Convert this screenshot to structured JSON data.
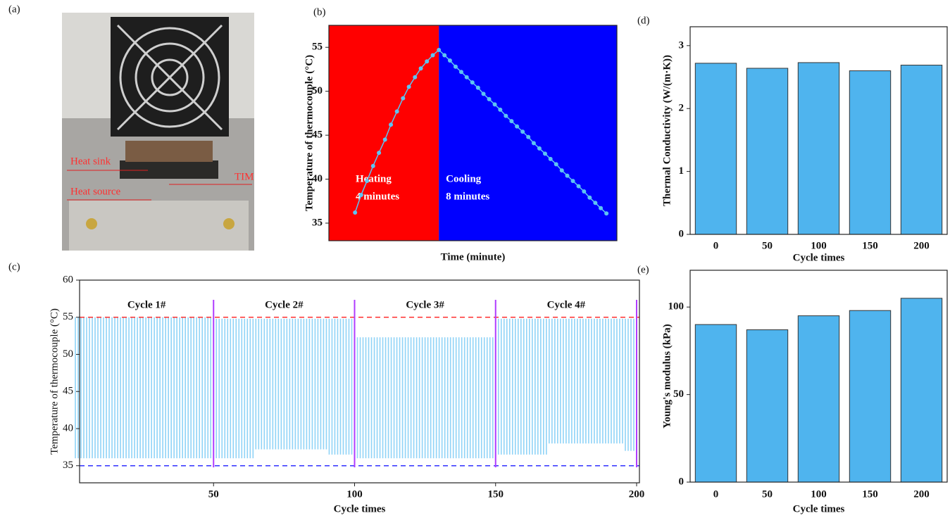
{
  "image_panel": {
    "panel_label": "(a)",
    "annotations": [
      "Heat sink",
      "TIM",
      "Heat source"
    ]
  },
  "chart_data": [
    {
      "type": "line",
      "panel_label": "(b)",
      "x_label": "Time (minute)",
      "y_label": "Temperature of thermocouple (°C)",
      "xlim": [
        -1.25,
        12.5
      ],
      "ylim": [
        33,
        57.5
      ],
      "yticks": [
        35,
        40,
        45,
        50,
        55
      ],
      "regions": [
        {
          "from": -1.25,
          "to": 4,
          "color": "#ff0000",
          "label": [
            "Heating",
            "4 minutes"
          ]
        },
        {
          "from": 4,
          "to": 12.5,
          "color": "#0000ff",
          "label": [
            "Cooling",
            "8 minutes"
          ]
        }
      ],
      "series": [
        {
          "color": "#5ec4f2",
          "x": [
            0,
            0.29,
            0.57,
            0.86,
            1.14,
            1.43,
            1.71,
            2.0,
            2.29,
            2.57,
            2.86,
            3.14,
            3.43,
            3.71,
            4.0,
            4.27,
            4.53,
            4.8,
            5.07,
            5.33,
            5.6,
            5.87,
            6.13,
            6.4,
            6.67,
            6.93,
            7.2,
            7.47,
            7.73,
            8.0,
            8.27,
            8.53,
            8.8,
            9.07,
            9.33,
            9.6,
            9.87,
            10.13,
            10.4,
            10.67,
            10.93,
            11.2,
            11.47,
            11.73,
            12.0
          ],
          "values": [
            36.2,
            38.2,
            39.8,
            41.5,
            43.0,
            44.5,
            46.2,
            47.7,
            49.2,
            50.5,
            51.6,
            52.6,
            53.4,
            54.1,
            54.7,
            54.1,
            53.5,
            52.8,
            52.2,
            51.6,
            51.0,
            50.4,
            49.7,
            49.1,
            48.5,
            47.9,
            47.2,
            46.6,
            46.0,
            45.4,
            44.8,
            44.1,
            43.5,
            42.9,
            42.3,
            41.7,
            41.0,
            40.4,
            39.8,
            39.2,
            38.6,
            37.9,
            37.3,
            36.7,
            36.1
          ]
        }
      ]
    },
    {
      "type": "range",
      "panel_label": "(c)",
      "x_label": "Cycle times",
      "y_label": "Temperature of thermocouple (°C)",
      "xlim": [
        2.5,
        201
      ],
      "ylim": [
        32.7,
        60
      ],
      "xticks": [
        50,
        100,
        150,
        200
      ],
      "yticks": [
        35,
        40,
        45,
        50,
        55,
        60
      ],
      "reference_lines": [
        {
          "value": 55,
          "color": "#ff3030"
        },
        {
          "value": 35,
          "color": "#3030ff"
        }
      ],
      "separators": [
        50,
        100,
        150,
        200
      ],
      "separator_color": "#b03cff",
      "annotations": [
        "Cycle 1#",
        "Cycle 2#",
        "Cycle 3#",
        "Cycle 4#"
      ],
      "x": [
        1,
        2,
        3,
        4,
        5,
        6,
        7,
        8,
        9,
        10,
        11,
        12,
        13,
        14,
        15,
        16,
        17,
        18,
        19,
        20,
        21,
        22,
        23,
        24,
        25,
        26,
        27,
        28,
        29,
        30,
        31,
        32,
        33,
        34,
        35,
        36,
        37,
        38,
        39,
        40,
        41,
        42,
        43,
        44,
        45,
        46,
        47,
        48,
        49,
        50,
        51,
        52,
        53,
        54,
        55,
        56,
        57,
        58,
        59,
        60,
        61,
        62,
        63,
        64,
        65,
        66,
        67,
        68,
        69,
        70,
        71,
        72,
        73,
        74,
        75,
        76,
        77,
        78,
        79,
        80,
        81,
        82,
        83,
        84,
        85,
        86,
        87,
        88,
        89,
        90,
        91,
        92,
        93,
        94,
        95,
        96,
        97,
        98,
        99,
        100,
        101,
        102,
        103,
        104,
        105,
        106,
        107,
        108,
        109,
        110,
        111,
        112,
        113,
        114,
        115,
        116,
        117,
        118,
        119,
        120,
        121,
        122,
        123,
        124,
        125,
        126,
        127,
        128,
        129,
        130,
        131,
        132,
        133,
        134,
        135,
        136,
        137,
        138,
        139,
        140,
        141,
        142,
        143,
        144,
        145,
        146,
        147,
        148,
        149,
        150,
        151,
        152,
        153,
        154,
        155,
        156,
        157,
        158,
        159,
        160,
        161,
        162,
        163,
        164,
        165,
        166,
        167,
        168,
        169,
        170,
        171,
        172,
        173,
        174,
        175,
        176,
        177,
        178,
        179,
        180,
        181,
        182,
        183,
        184,
        185,
        186,
        187,
        188,
        189,
        190,
        191,
        192,
        193,
        194,
        195,
        196,
        197,
        198,
        199,
        200
      ],
      "series": [
        {
          "color": "#8fd3f7",
          "values": [
            55,
            55,
            55,
            55,
            55,
            55,
            55,
            55,
            55,
            55,
            55,
            55,
            55,
            55,
            55,
            55,
            55,
            55,
            55,
            55,
            55,
            55,
            55,
            55,
            55,
            55,
            55,
            55,
            55,
            55,
            55,
            55,
            55,
            55,
            55,
            55,
            55,
            55,
            55,
            55,
            55,
            55,
            55,
            55,
            55,
            55,
            55,
            55,
            55,
            55,
            54.8,
            54.8,
            54.8,
            54.8,
            54.8,
            54.8,
            54.8,
            54.8,
            54.8,
            54.8,
            54.8,
            54.8,
            54.8,
            54.8,
            54.8,
            54.8,
            54.8,
            54.8,
            54.8,
            54.8,
            54.8,
            54.8,
            54.8,
            54.8,
            54.8,
            54.8,
            54.8,
            54.8,
            54.8,
            54.8,
            54.8,
            54.8,
            54.8,
            54.8,
            54.8,
            54.8,
            54.8,
            54.8,
            54.8,
            54.8,
            54.8,
            54.8,
            54.8,
            54.8,
            54.8,
            54.8,
            54.8,
            54.8,
            54.8,
            54.8,
            52.3,
            52.3,
            52.3,
            52.3,
            52.3,
            52.3,
            52.3,
            52.3,
            52.3,
            52.3,
            52.3,
            52.3,
            52.3,
            52.3,
            52.3,
            52.3,
            52.3,
            52.3,
            52.3,
            52.3,
            52.3,
            52.3,
            52.3,
            52.3,
            52.3,
            52.3,
            52.3,
            52.3,
            52.3,
            52.3,
            52.3,
            52.3,
            52.3,
            52.3,
            52.3,
            52.3,
            52.3,
            52.3,
            52.3,
            52.3,
            52.3,
            52.3,
            52.3,
            52.3,
            52.3,
            52.3,
            52.3,
            52.3,
            52.3,
            52.3,
            54.8,
            54.8,
            54.8,
            54.8,
            54.8,
            54.8,
            54.8,
            54.8,
            54.8,
            54.8,
            54.8,
            54.8,
            54.8,
            54.8,
            54.8,
            54.8,
            54.8,
            54.8,
            54.8,
            54.8,
            54.8,
            54.8,
            54.8,
            54.8,
            54.8,
            54.8,
            54.8,
            54.8,
            54.8,
            54.8,
            54.8,
            54.8,
            54.8,
            54.8,
            54.8,
            54.8,
            54.8,
            54.8,
            54.8,
            54.8,
            54.8,
            54.8,
            54.8,
            54.8,
            54.8,
            54.8,
            54.8,
            54.8,
            54.8,
            54.8
          ]
        },
        {
          "color": "#8fd3f7",
          "values": [
            36,
            36,
            36,
            36,
            36,
            36,
            36,
            36,
            36,
            36,
            36,
            36,
            36,
            36,
            36,
            36,
            36,
            36,
            36,
            36,
            36,
            36,
            36,
            36,
            36,
            36,
            36,
            36,
            36,
            36,
            36,
            36,
            36,
            36,
            36,
            36,
            36,
            36,
            36,
            36,
            36,
            36,
            36,
            36,
            36,
            36,
            36,
            36,
            36,
            36,
            36,
            36,
            36,
            36,
            36,
            36,
            36,
            36,
            36,
            36,
            36,
            36,
            36,
            36,
            37.2,
            37.2,
            37.2,
            37.2,
            37.2,
            37.2,
            37.2,
            37.2,
            37.2,
            37.2,
            37.2,
            37.2,
            37.2,
            37.2,
            37.2,
            37.2,
            37.2,
            37.2,
            37.2,
            37.2,
            37.2,
            37.2,
            37.2,
            37.2,
            37.2,
            37.2,
            36.5,
            36.5,
            36.5,
            36.5,
            36.5,
            36.5,
            36.5,
            36.5,
            36.5,
            36.5,
            36,
            36,
            36,
            36,
            36,
            36,
            36,
            36,
            36,
            36,
            36,
            36,
            36,
            36,
            36,
            36,
            36,
            36,
            36,
            36,
            36,
            36,
            36,
            36,
            36,
            36,
            36,
            36,
            36,
            36,
            36,
            36,
            36,
            36,
            36,
            36,
            36,
            36,
            36,
            36,
            36,
            36,
            36,
            36,
            36,
            36,
            36,
            36,
            36,
            36,
            36.5,
            36.5,
            36.5,
            36.5,
            36.5,
            36.5,
            36.5,
            36.5,
            36.5,
            36.5,
            36.5,
            36.5,
            36.5,
            36.5,
            36.5,
            36.5,
            36.5,
            36.5,
            38,
            38,
            38,
            38,
            38,
            38,
            38,
            38,
            38,
            38,
            38,
            38,
            38,
            38,
            38,
            38,
            38,
            38,
            38,
            38,
            38,
            38,
            38,
            38,
            38,
            38,
            38,
            37,
            37,
            37,
            37,
            37
          ]
        }
      ]
    },
    {
      "type": "bar",
      "panel_label": "(d)",
      "x_label": "Cycle times",
      "y_label": "Thermal Conductivity (W/(m·K))",
      "categories": [
        "0",
        "50",
        "100",
        "150",
        "200"
      ],
      "values": [
        2.72,
        2.64,
        2.73,
        2.6,
        2.69
      ],
      "color": "#4fb4ee",
      "ylim": [
        0,
        3.3
      ],
      "yticks": [
        0,
        1,
        2,
        3
      ]
    },
    {
      "type": "bar",
      "panel_label": "(e)",
      "x_label": "Cycle times",
      "y_label": "Young's modulus (kPa)",
      "categories": [
        "0",
        "50",
        "100",
        "150",
        "200"
      ],
      "values": [
        90,
        87,
        95,
        98,
        105
      ],
      "color": "#4fb4ee",
      "ylim": [
        0,
        121
      ],
      "yticks": [
        0,
        50,
        100
      ]
    }
  ]
}
